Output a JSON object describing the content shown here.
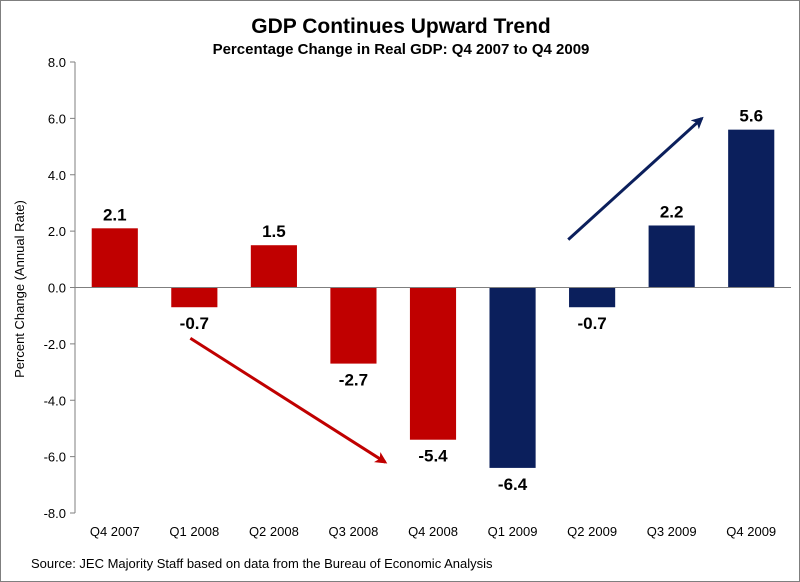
{
  "chart_data": {
    "type": "bar",
    "title": "GDP Continues Upward Trend",
    "subtitle": "Percentage Change in Real GDP: Q4 2007 to Q4 2009",
    "ylabel": "Percent Change (Annual Rate)",
    "xlabel": "",
    "ylim": [
      -8.0,
      8.0
    ],
    "ytick_step": 2.0,
    "ytick_labels": [
      "-8.0",
      "-6.0",
      "-4.0",
      "-2.0",
      "0.0",
      "2.0",
      "4.0",
      "6.0",
      "8.0"
    ],
    "grid": false,
    "categories": [
      "Q4 2007",
      "Q1 2008",
      "Q2 2008",
      "Q3 2008",
      "Q4 2008",
      "Q1 2009",
      "Q2 2009",
      "Q3 2009",
      "Q4 2009"
    ],
    "values": [
      2.1,
      -0.7,
      1.5,
      -2.7,
      -5.4,
      -6.4,
      -0.7,
      2.2,
      5.6
    ],
    "data_labels": [
      "2.1",
      "-0.7",
      "1.5",
      "-2.7",
      "-5.4",
      "-6.4",
      "-0.7",
      "2.2",
      "5.6"
    ],
    "bar_colors": [
      "#c00000",
      "#c00000",
      "#c00000",
      "#c00000",
      "#c00000",
      "#0b1f5c",
      "#0b1f5c",
      "#0b1f5c",
      "#0b1f5c"
    ],
    "annotations": [
      {
        "type": "arrow",
        "color": "#c00000",
        "direction": "down-right",
        "from": [
          "Q1 2008",
          -1.8
        ],
        "to": [
          "Q4 2008",
          -6.2
        ]
      },
      {
        "type": "arrow",
        "color": "#0b1f5c",
        "direction": "up-right",
        "from": [
          "Q2 2009",
          1.7
        ],
        "to": [
          "Q3 2009",
          6.0
        ]
      }
    ]
  },
  "source": "Source:  JEC Majority Staff based on data from the Bureau of Economic Analysis"
}
